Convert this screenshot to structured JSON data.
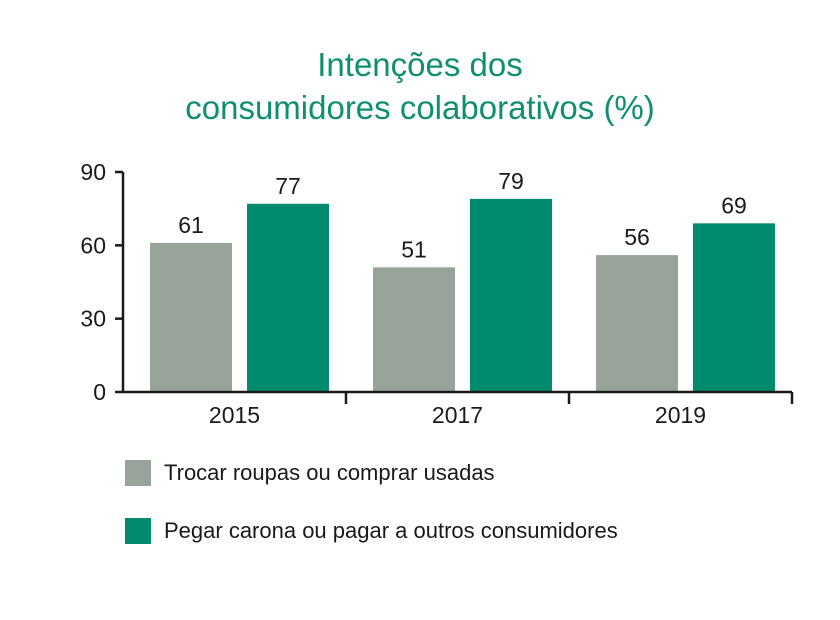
{
  "title_line1": "Intenções dos",
  "title_line2": "consumidores colaborativos (%)",
  "chart_data": {
    "type": "bar",
    "title": "Intenções dos consumidores colaborativos (%)",
    "categories": [
      "2015",
      "2017",
      "2019"
    ],
    "series": [
      {
        "name": "Trocar roupas ou comprar usadas",
        "values": [
          61,
          51,
          56
        ],
        "color": "#98a49a"
      },
      {
        "name": "Pegar carona ou pagar a outros consumidores",
        "values": [
          77,
          79,
          69
        ],
        "color": "#008b6f"
      }
    ],
    "yticks": [
      0,
      30,
      60,
      90
    ],
    "ylim": [
      0,
      90
    ],
    "xlabel": "",
    "ylabel": "",
    "legend_position": "bottom",
    "title_color": "#0f8f71",
    "text_color": "#1a1a1a"
  }
}
